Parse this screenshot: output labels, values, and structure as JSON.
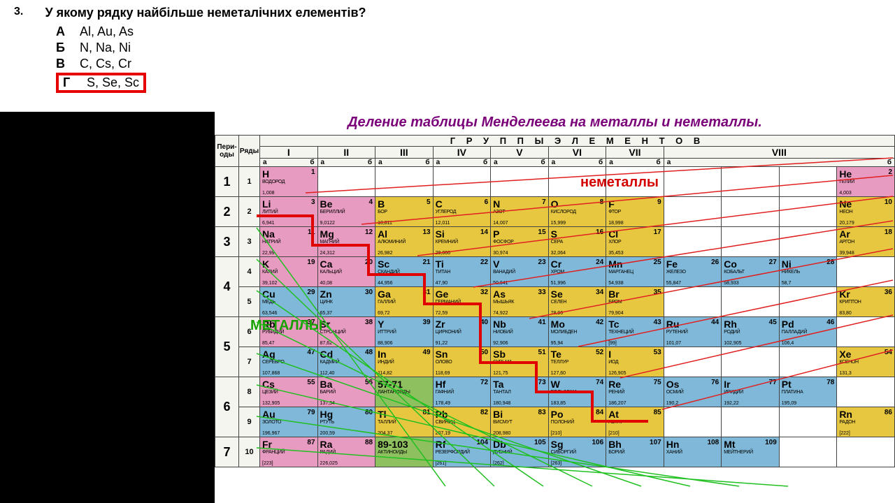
{
  "question": {
    "number": "3.",
    "text": "У якому рядку найбільше неметалічних елементів?",
    "options": [
      {
        "letter": "А",
        "text": "Al, Au, As"
      },
      {
        "letter": "Б",
        "text": "N, Na, Ni"
      },
      {
        "letter": "В",
        "text": "C, Cs, Cr"
      },
      {
        "letter": "Г",
        "text": "S, Se, Sc"
      }
    ],
    "highlighted_index": 3
  },
  "caption": "Деление таблицы Менделеева на металлы и неметаллы.",
  "labels": {
    "nonmetals": "неметаллы",
    "metals": "МЕТАЛЛЫ",
    "groups_header": "Г Р У П П Ы   Э Л Е М Е Н Т О В",
    "periods": "Пери-оды",
    "rows": "Ряды"
  },
  "colors": {
    "pink": "#e89bc0",
    "yellow": "#e8c740",
    "blue": "#7fb8d8",
    "green": "#8fc060",
    "white": "#ffffff",
    "highlight_border": "#e60000",
    "caption_text": "#7a007a",
    "nonmetal_text": "#d40000",
    "metal_text": "#19a000",
    "red_line": "#e02020",
    "green_line": "#20c020",
    "stair_red": "#e00000"
  },
  "groups": [
    "I",
    "II",
    "III",
    "IV",
    "V",
    "VI",
    "VII",
    "VIII"
  ],
  "subgroups": [
    "а",
    "б"
  ],
  "periods": [
    {
      "p": "1",
      "rows": [
        {
          "r": "1",
          "cells": [
            {
              "sym": "H",
              "num": "1",
              "name": "ВОДОРОД",
              "mass": "1,008",
              "c": "pink"
            },
            null,
            null,
            null,
            null,
            null,
            null,
            null,
            null,
            null,
            {
              "sym": "He",
              "num": "2",
              "name": "ГЕЛИЙ",
              "mass": "4,003",
              "c": "pink"
            }
          ]
        }
      ]
    },
    {
      "p": "2",
      "rows": [
        {
          "r": "2",
          "cells": [
            {
              "sym": "Li",
              "num": "3",
              "name": "ЛИТИЙ",
              "mass": "6,941",
              "c": "pink"
            },
            {
              "sym": "Be",
              "num": "4",
              "name": "БЕРИЛЛИЙ",
              "mass": "9,0122",
              "c": "pink"
            },
            {
              "sym": "B",
              "num": "5",
              "name": "БОР",
              "mass": "10,811",
              "c": "yellow"
            },
            {
              "sym": "C",
              "num": "6",
              "name": "УГЛЕРОД",
              "mass": "12,011",
              "c": "yellow"
            },
            {
              "sym": "N",
              "num": "7",
              "name": "АЗОТ",
              "mass": "14,007",
              "c": "yellow"
            },
            {
              "sym": "O",
              "num": "8",
              "name": "КИСЛОРОД",
              "mass": "15,999",
              "c": "yellow"
            },
            {
              "sym": "F",
              "num": "9",
              "name": "ФТОР",
              "mass": "18,998",
              "c": "yellow"
            },
            null,
            null,
            null,
            {
              "sym": "Ne",
              "num": "10",
              "name": "НЕОН",
              "mass": "20,179",
              "c": "yellow"
            }
          ]
        }
      ]
    },
    {
      "p": "3",
      "rows": [
        {
          "r": "3",
          "cells": [
            {
              "sym": "Na",
              "num": "11",
              "name": "НАТРИЙ",
              "mass": "22,99",
              "c": "pink"
            },
            {
              "sym": "Mg",
              "num": "12",
              "name": "МАГНИЙ",
              "mass": "24,312",
              "c": "pink"
            },
            {
              "sym": "Al",
              "num": "13",
              "name": "АЛЮМИНИЙ",
              "mass": "26,982",
              "c": "yellow"
            },
            {
              "sym": "Si",
              "num": "14",
              "name": "КРЕМНИЙ",
              "mass": "28,086",
              "c": "yellow"
            },
            {
              "sym": "P",
              "num": "15",
              "name": "ФОСФОР",
              "mass": "30,974",
              "c": "yellow"
            },
            {
              "sym": "S",
              "num": "16",
              "name": "СЕРА",
              "mass": "32,064",
              "c": "yellow"
            },
            {
              "sym": "Cl",
              "num": "17",
              "name": "ХЛОР",
              "mass": "35,453",
              "c": "yellow"
            },
            null,
            null,
            null,
            {
              "sym": "Ar",
              "num": "18",
              "name": "АРГОН",
              "mass": "39,948",
              "c": "yellow"
            }
          ]
        }
      ]
    },
    {
      "p": "4",
      "rows": [
        {
          "r": "4",
          "cells": [
            {
              "sym": "K",
              "num": "19",
              "name": "КАЛИЙ",
              "mass": "39,102",
              "c": "pink"
            },
            {
              "sym": "Ca",
              "num": "20",
              "name": "КАЛЬЦИЙ",
              "mass": "40,08",
              "c": "pink"
            },
            {
              "sym": "Sc",
              "num": "21",
              "name": "СКАНДИЙ",
              "mass": "44,956",
              "c": "blue"
            },
            {
              "sym": "Ti",
              "num": "22",
              "name": "ТИТАН",
              "mass": "47,90",
              "c": "blue"
            },
            {
              "sym": "V",
              "num": "23",
              "name": "ВАНАДИЙ",
              "mass": "50,941",
              "c": "blue"
            },
            {
              "sym": "Cr",
              "num": "24",
              "name": "ХРОМ",
              "mass": "51,996",
              "c": "blue"
            },
            {
              "sym": "Mn",
              "num": "25",
              "name": "МАРГАНЕЦ",
              "mass": "54,938",
              "c": "blue"
            },
            {
              "sym": "Fe",
              "num": "26",
              "name": "ЖЕЛЕЗО",
              "mass": "55,847",
              "c": "blue"
            },
            {
              "sym": "Co",
              "num": "27",
              "name": "КОБАЛЬТ",
              "mass": "58,933",
              "c": "blue"
            },
            {
              "sym": "Ni",
              "num": "28",
              "name": "НИКЕЛЬ",
              "mass": "58,7",
              "c": "blue"
            },
            null
          ]
        },
        {
          "r": "5",
          "cells": [
            {
              "sym": "Cu",
              "num": "29",
              "name": "МЕДЬ",
              "mass": "63,546",
              "c": "blue"
            },
            {
              "sym": "Zn",
              "num": "30",
              "name": "ЦИНК",
              "mass": "65,37",
              "c": "blue"
            },
            {
              "sym": "Ga",
              "num": "31",
              "name": "ГАЛЛИЙ",
              "mass": "69,72",
              "c": "yellow"
            },
            {
              "sym": "Ge",
              "num": "32",
              "name": "ГЕРМАНИЙ",
              "mass": "72,59",
              "c": "yellow"
            },
            {
              "sym": "As",
              "num": "33",
              "name": "МЫШЬЯК",
              "mass": "74,922",
              "c": "yellow"
            },
            {
              "sym": "Se",
              "num": "34",
              "name": "СЕЛЕН",
              "mass": "78,96",
              "c": "yellow"
            },
            {
              "sym": "Br",
              "num": "35",
              "name": "БРОМ",
              "mass": "79,904",
              "c": "yellow"
            },
            null,
            null,
            null,
            {
              "sym": "Kr",
              "num": "36",
              "name": "КРИПТОН",
              "mass": "83,80",
              "c": "yellow"
            }
          ]
        }
      ]
    },
    {
      "p": "5",
      "rows": [
        {
          "r": "6",
          "cells": [
            {
              "sym": "Rb",
              "num": "37",
              "name": "РУБИДИЙ",
              "mass": "85,47",
              "c": "pink"
            },
            {
              "sym": "Sr",
              "num": "38",
              "name": "СТРОНЦИЙ",
              "mass": "87,62",
              "c": "pink"
            },
            {
              "sym": "Y",
              "num": "39",
              "name": "ИТТРИЙ",
              "mass": "88,906",
              "c": "blue"
            },
            {
              "sym": "Zr",
              "num": "40",
              "name": "ЦИРКОНИЙ",
              "mass": "91,22",
              "c": "blue"
            },
            {
              "sym": "Nb",
              "num": "41",
              "name": "НИОБИЙ",
              "mass": "92,906",
              "c": "blue"
            },
            {
              "sym": "Mo",
              "num": "42",
              "name": "МОЛИБДЕН",
              "mass": "95,94",
              "c": "blue"
            },
            {
              "sym": "Tc",
              "num": "43",
              "name": "ТЕХНЕЦИЙ",
              "mass": "[99]",
              "c": "blue"
            },
            {
              "sym": "Ru",
              "num": "44",
              "name": "РУТЕНИЙ",
              "mass": "101,07",
              "c": "blue"
            },
            {
              "sym": "Rh",
              "num": "45",
              "name": "РОДИЙ",
              "mass": "102,905",
              "c": "blue"
            },
            {
              "sym": "Pd",
              "num": "46",
              "name": "ПАЛЛАДИЙ",
              "mass": "106,4",
              "c": "blue"
            },
            null
          ]
        },
        {
          "r": "7",
          "cells": [
            {
              "sym": "Ag",
              "num": "47",
              "name": "СЕРЕБРО",
              "mass": "107,868",
              "c": "blue"
            },
            {
              "sym": "Cd",
              "num": "48",
              "name": "КАДМИЙ",
              "mass": "112,40",
              "c": "blue"
            },
            {
              "sym": "In",
              "num": "49",
              "name": "ИНДИЙ",
              "mass": "114,82",
              "c": "yellow"
            },
            {
              "sym": "Sn",
              "num": "50",
              "name": "ОЛОВО",
              "mass": "118,69",
              "c": "yellow"
            },
            {
              "sym": "Sb",
              "num": "51",
              "name": "СУРЬМА",
              "mass": "121,75",
              "c": "yellow"
            },
            {
              "sym": "Te",
              "num": "52",
              "name": "ТЕЛЛУР",
              "mass": "127,60",
              "c": "yellow"
            },
            {
              "sym": "I",
              "num": "53",
              "name": "ИОД",
              "mass": "126,905",
              "c": "yellow"
            },
            null,
            null,
            null,
            {
              "sym": "Xe",
              "num": "54",
              "name": "КСЕНОН",
              "mass": "131,3",
              "c": "yellow"
            }
          ]
        }
      ]
    },
    {
      "p": "6",
      "rows": [
        {
          "r": "8",
          "cells": [
            {
              "sym": "Cs",
              "num": "55",
              "name": "ЦЕЗИЙ",
              "mass": "132,905",
              "c": "pink"
            },
            {
              "sym": "Ba",
              "num": "56",
              "name": "БАРИЙ",
              "mass": "137,34",
              "c": "pink"
            },
            {
              "sym": "57-71",
              "num": "",
              "name": "ЛАНТАНОИДЫ",
              "mass": "",
              "c": "green"
            },
            {
              "sym": "Hf",
              "num": "72",
              "name": "ГАФНИЙ",
              "mass": "178,49",
              "c": "blue"
            },
            {
              "sym": "Ta",
              "num": "73",
              "name": "ТАНТАЛ",
              "mass": "180,948",
              "c": "blue"
            },
            {
              "sym": "W",
              "num": "74",
              "name": "ВОЛЬФРАМ",
              "mass": "183,85",
              "c": "blue"
            },
            {
              "sym": "Re",
              "num": "75",
              "name": "РЕНИЙ",
              "mass": "186,207",
              "c": "blue"
            },
            {
              "sym": "Os",
              "num": "76",
              "name": "ОСМИЙ",
              "mass": "190,2",
              "c": "blue"
            },
            {
              "sym": "Ir",
              "num": "77",
              "name": "ИРИДИЙ",
              "mass": "192,22",
              "c": "blue"
            },
            {
              "sym": "Pt",
              "num": "78",
              "name": "ПЛАТИНА",
              "mass": "195,09",
              "c": "blue"
            },
            null
          ]
        },
        {
          "r": "9",
          "cells": [
            {
              "sym": "Au",
              "num": "79",
              "name": "ЗОЛОТО",
              "mass": "196,967",
              "c": "blue"
            },
            {
              "sym": "Hg",
              "num": "80",
              "name": "РТУТЬ",
              "mass": "200,59",
              "c": "blue"
            },
            {
              "sym": "Tl",
              "num": "81",
              "name": "ТАЛЛИЙ",
              "mass": "204,37",
              "c": "yellow"
            },
            {
              "sym": "Pb",
              "num": "82",
              "name": "СВИНЕЦ",
              "mass": "207,19",
              "c": "yellow"
            },
            {
              "sym": "Bi",
              "num": "83",
              "name": "ВИСМУТ",
              "mass": "208,980",
              "c": "yellow"
            },
            {
              "sym": "Po",
              "num": "84",
              "name": "ПОЛОНИЙ",
              "mass": "[210]",
              "c": "yellow"
            },
            {
              "sym": "At",
              "num": "85",
              "name": "АСТАТ",
              "mass": "[210]",
              "c": "yellow"
            },
            null,
            null,
            null,
            {
              "sym": "Rn",
              "num": "86",
              "name": "РАДОН",
              "mass": "[222]",
              "c": "yellow"
            }
          ]
        }
      ]
    },
    {
      "p": "7",
      "rows": [
        {
          "r": "10",
          "cells": [
            {
              "sym": "Fr",
              "num": "87",
              "name": "ФРАНЦИЙ",
              "mass": "[223]",
              "c": "pink"
            },
            {
              "sym": "Ra",
              "num": "88",
              "name": "РАДИЙ",
              "mass": "226,025",
              "c": "pink"
            },
            {
              "sym": "89-103",
              "num": "",
              "name": "АКТИНОИДЫ",
              "mass": "",
              "c": "green"
            },
            {
              "sym": "Rf",
              "num": "104",
              "name": "РЕЗЕРФОРДИЙ",
              "mass": "[261]",
              "c": "blue"
            },
            {
              "sym": "Db",
              "num": "105",
              "name": "ДУБНИЙ",
              "mass": "[262]",
              "c": "blue"
            },
            {
              "sym": "Sg",
              "num": "106",
              "name": "СИБОРГИЙ",
              "mass": "[263]",
              "c": "blue"
            },
            {
              "sym": "Bh",
              "num": "107",
              "name": "БОРИЙ",
              "mass": "",
              "c": "blue"
            },
            {
              "sym": "Hn",
              "num": "108",
              "name": "ХАНИЙ",
              "mass": "",
              "c": "blue"
            },
            {
              "sym": "Mt",
              "num": "109",
              "name": "МЕЙТНЕРИЙ",
              "mass": "",
              "c": "blue"
            },
            null,
            null
          ]
        }
      ]
    }
  ]
}
